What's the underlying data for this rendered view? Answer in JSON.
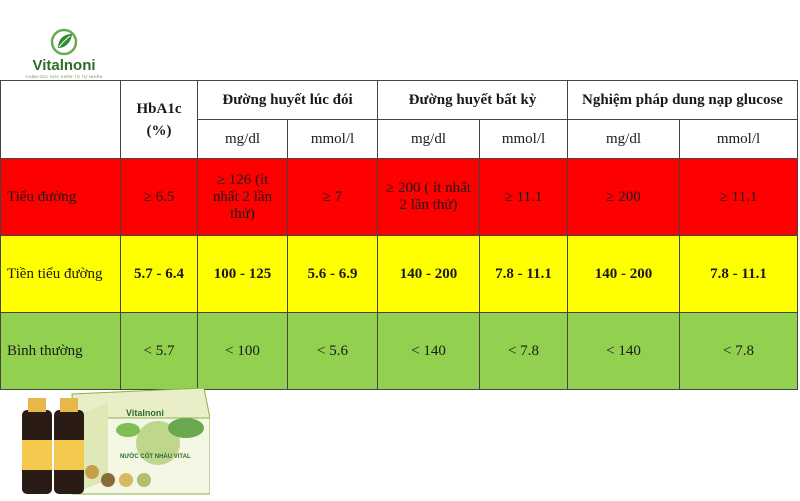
{
  "brand": {
    "name": "Vitalnoni",
    "tagline": "CHĂM SÓC SỨC KHỎE TỪ TỰ NHIÊN"
  },
  "table": {
    "hba1c_header": "HbA1c",
    "hba1c_unit": "(%)",
    "groups": [
      "Đường huyết lúc đói",
      "Đường huyết bất kỳ",
      "Nghiệm pháp dung nạp glucose"
    ],
    "units": [
      "mg/dl",
      "mmol/l",
      "mg/dl",
      "mmol/l",
      "mg/dl",
      "mmol/l"
    ],
    "rows": [
      {
        "label": "Tiểu đường",
        "color": "#ff0000",
        "cells": [
          "≥ 6.5",
          "≥ 126 (ít nhất 2 lần thử)",
          "≥ 7",
          "≥ 200 ( ít nhất 2 lần thử)",
          "≥ 11.1",
          "≥ 200",
          "≥ 11.1"
        ]
      },
      {
        "label": "Tiền tiểu đường",
        "color": "#ffff00",
        "cells": [
          "5.7 - 6.4",
          "100 - 125",
          "5.6 - 6.9",
          "140 - 200",
          "7.8 - 11.1",
          "140 - 200",
          "7.8 - 11.1"
        ]
      },
      {
        "label": "Bình thường",
        "color": "#92d050",
        "cells": [
          "< 5.7",
          "< 100",
          "< 5.6",
          "< 140",
          "< 7.8",
          "< 140",
          "< 7.8"
        ]
      }
    ]
  },
  "product": {
    "box_brand": "Vitalnoni",
    "box_title": "NƯỚC CỐT NHÀU VITAL"
  }
}
